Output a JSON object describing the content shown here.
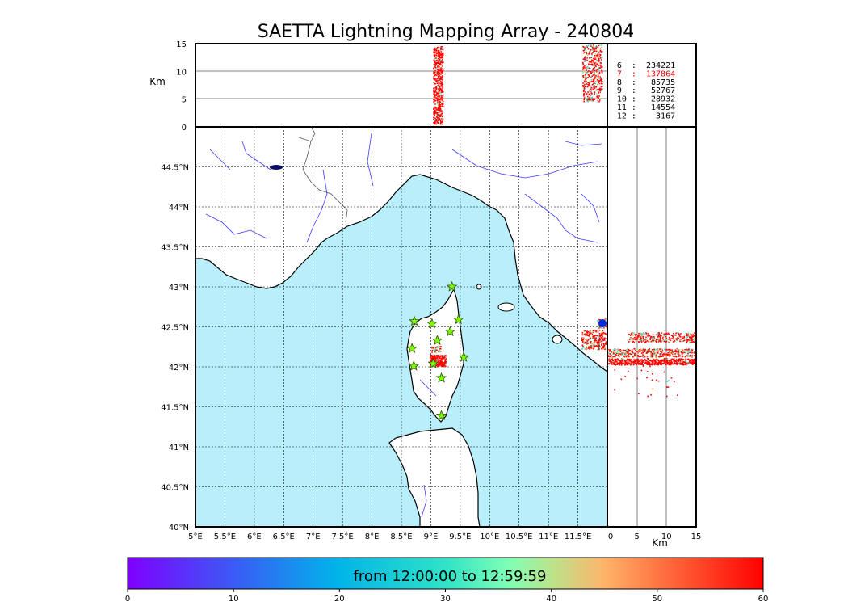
{
  "title": "SAETTA Lightning Mapping Array - 240804",
  "colors": {
    "sea": "#b9eefb",
    "land": "#ffffff",
    "coast": "#000000",
    "river": "#3b3bff",
    "border": "#555555",
    "grid": "#000000",
    "station_fill": "#7cfc00",
    "station_edge": "#2f4f00",
    "highlight_count": "#ff0000"
  },
  "map": {
    "lon_range": [
      5,
      12
    ],
    "lat_range": [
      40,
      45
    ],
    "lon_ticks": [
      "5°E",
      "5.5°E",
      "6°E",
      "6.5°E",
      "7°E",
      "7.5°E",
      "8°E",
      "8.5°E",
      "9°E",
      "9.5°E",
      "10°E",
      "10.5°E",
      "11°E",
      "11.5°E"
    ],
    "lat_ticks": [
      "40°N",
      "40.5°N",
      "41°N",
      "41.5°N",
      "42°N",
      "42.5°N",
      "43°N",
      "43.5°N",
      "44°N",
      "44.5°N"
    ],
    "stations": [
      {
        "lon": 9.36,
        "lat": 43.0
      },
      {
        "lon": 8.72,
        "lat": 42.57
      },
      {
        "lon": 9.02,
        "lat": 42.54
      },
      {
        "lon": 9.47,
        "lat": 42.59
      },
      {
        "lon": 9.33,
        "lat": 42.44
      },
      {
        "lon": 9.11,
        "lat": 42.33
      },
      {
        "lon": 8.68,
        "lat": 42.23
      },
      {
        "lon": 9.56,
        "lat": 42.12
      },
      {
        "lon": 8.71,
        "lat": 42.01
      },
      {
        "lon": 9.04,
        "lat": 42.04
      },
      {
        "lon": 9.18,
        "lat": 41.86
      },
      {
        "lon": 9.18,
        "lat": 41.39
      }
    ]
  },
  "alt_panel": {
    "ylabel": "Km",
    "yticks": [
      "0",
      "5",
      "10",
      "15"
    ],
    "range": [
      0,
      15
    ]
  },
  "side_panel": {
    "xlabel": "Km",
    "xticks": [
      "0",
      "5",
      "10",
      "15"
    ],
    "range": [
      0,
      15
    ]
  },
  "station_counts": [
    {
      "label": "6  :  234221",
      "highlight": false
    },
    {
      "label": "7  :  137864",
      "highlight": true
    },
    {
      "label": "8  :   85735",
      "highlight": false
    },
    {
      "label": "9  :   52767",
      "highlight": false
    },
    {
      "label": "10 :   28932",
      "highlight": false
    },
    {
      "label": "11 :   14554",
      "highlight": false
    },
    {
      "label": "12 :    3167",
      "highlight": false
    }
  ],
  "colorbar": {
    "text": "from 12:00:00 to 12:59:59",
    "ticks": [
      "0",
      "10",
      "20",
      "30",
      "40",
      "50",
      "60"
    ],
    "range": [
      0,
      60
    ]
  }
}
